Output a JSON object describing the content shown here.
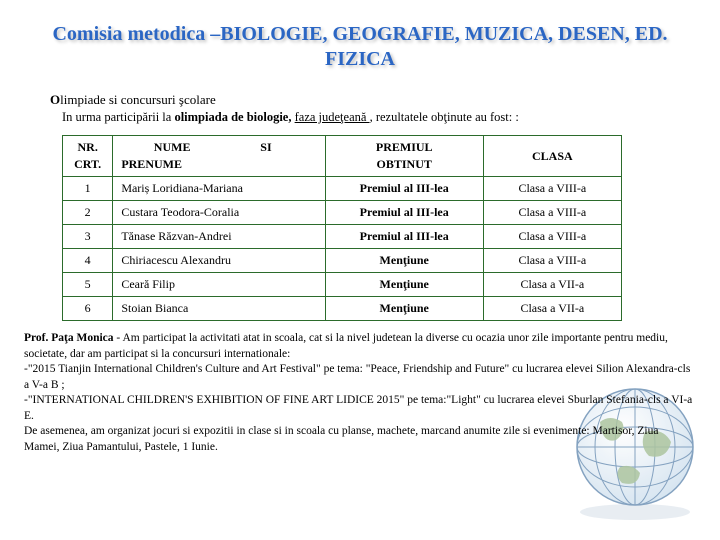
{
  "title": "Comisia metodica –BIOLOGIE, GEOGRAFIE, MUZICA, DESEN, ED. FIZICA",
  "subtitle_prefix": "O",
  "subtitle_rest": "limpiade si concursuri şcolare",
  "subtext_before": "In urma participării la ",
  "subtext_bold": "olimpiada de biologie, ",
  "subtext_underline": "faza judeţeană ",
  "subtext_after": ", rezultatele obţinute au fost: :",
  "headers": {
    "nr_top": "NR.",
    "nr_bot": "CRT.",
    "name_top": "NUME",
    "name_bot": "PRENUME",
    "si": "SI",
    "prize_top": "PREMIUL",
    "prize_bot": "OBTINUT",
    "clasa": "CLASA"
  },
  "rows": [
    {
      "nr": "1",
      "name": "Mariș Loridiana-Mariana",
      "prize": "Premiul al III-lea",
      "clasa": "Clasa a VIII-a"
    },
    {
      "nr": "2",
      "name": "Custara Teodora-Coralia",
      "prize": "Premiul al III-lea",
      "clasa": "Clasa a VIII-a"
    },
    {
      "nr": "3",
      "name": "Tănase Răzvan-Andrei",
      "prize": "Premiul al III-lea",
      "clasa": "Clasa a VIII-a"
    },
    {
      "nr": "4",
      "name": "Chiriacescu Alexandru",
      "prize": "Menţiune",
      "clasa": "Clasa a VIII-a"
    },
    {
      "nr": "5",
      "name": "Ceară Filip",
      "prize": "Menţiune",
      "clasa": "Clasa a VII-a"
    },
    {
      "nr": "6",
      "name": "Stoian Bianca",
      "prize": "Menţiune",
      "clasa": "Clasa a VII-a"
    }
  ],
  "paragraph_bold": "Prof. Paţa Monica",
  "paragraph_rest": " - Am participat la activitati atat in scoala, cat si la nivel judetean la diverse cu ocazia unor zile importante pentru mediu, societate, dar am participat si la concursuri internationale:\n-\"2015 Tianjin International Children's Culture and Art Festival\" pe tema: \"Peace, Friendship and Future\" cu lucrarea elevei Silion Alexandra-cls a V-a B ;\n-\"INTERNATIONAL CHILDREN'S EXHIBITION OF FINE ART LIDICE 2015\" pe tema:\"Light\" cu lucrarea elevei Sburlan Stefania-cls a VI-a E.\n De asemenea, am organizat jocuri si expozitii in clase si in scoala cu planse, machete, marcand anumite zile si evenimente: Martisor, Ziua Mamei, Ziua Pamantului, Pastele, 1 Iunie.",
  "style": {
    "title_color": "#2b66c4",
    "border_color": "#2b6b2b",
    "globe_stroke": "#88a7c9",
    "globe_fill": "#d8e6f2"
  }
}
